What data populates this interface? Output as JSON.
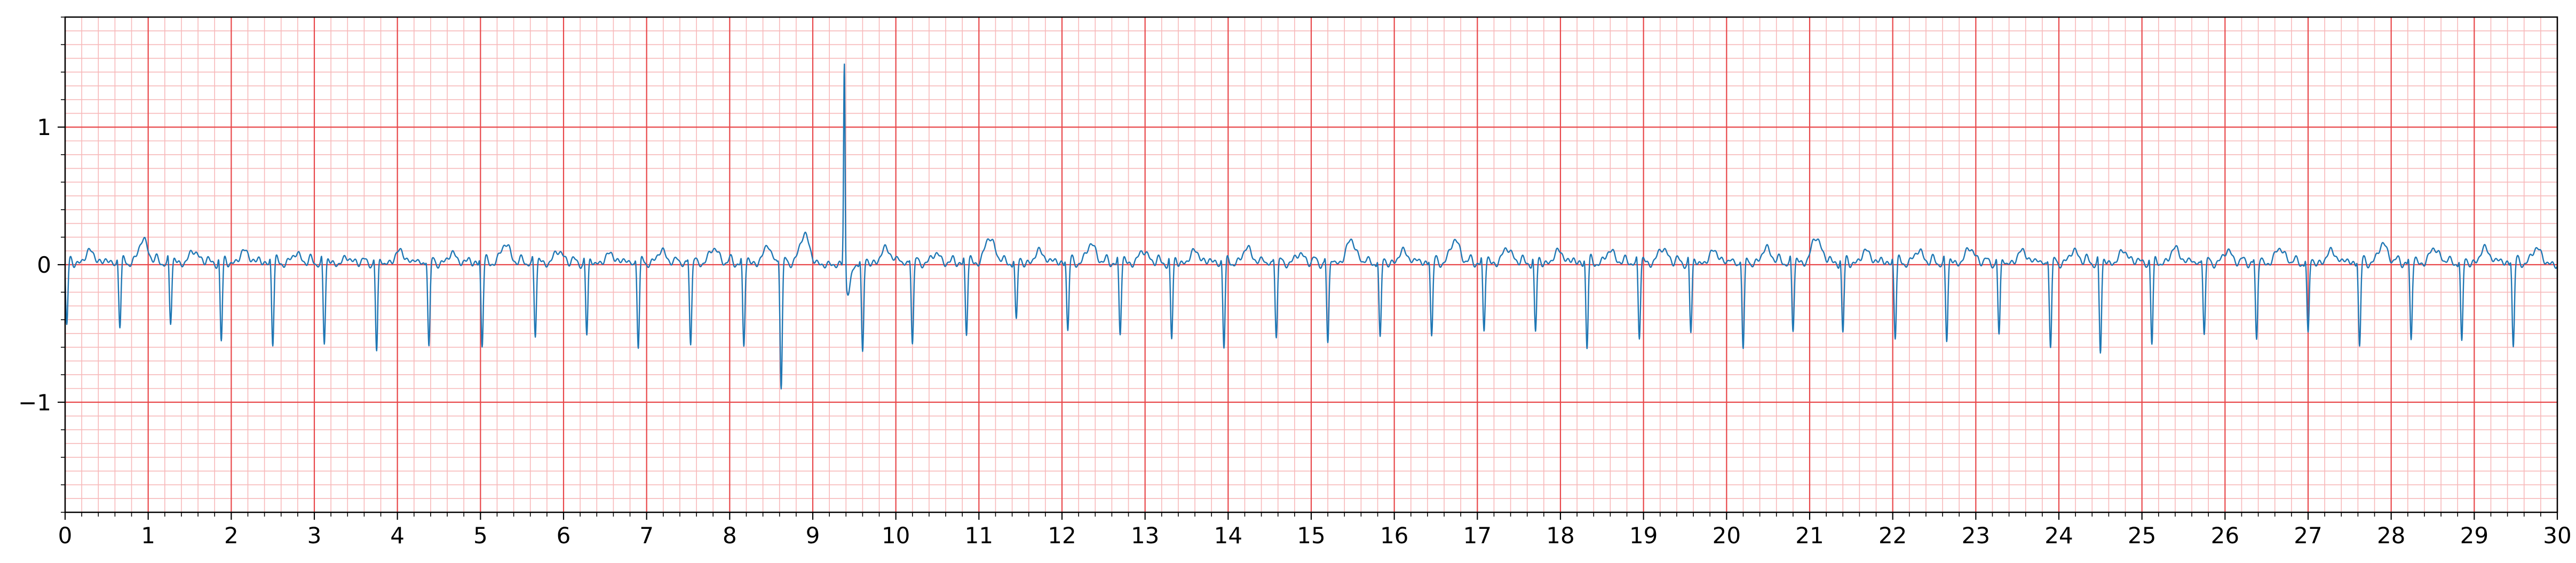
{
  "chart_data": {
    "type": "line",
    "title": "",
    "xlabel": "",
    "ylabel": "",
    "xlim": [
      0,
      30
    ],
    "ylim": [
      -1.8,
      1.8
    ],
    "x_ticks": [
      "0",
      "1",
      "2",
      "3",
      "4",
      "5",
      "6",
      "7",
      "8",
      "9",
      "10",
      "11",
      "12",
      "13",
      "14",
      "15",
      "16",
      "17",
      "18",
      "19",
      "20",
      "21",
      "22",
      "23",
      "24",
      "25",
      "26",
      "27",
      "28",
      "29",
      "30"
    ],
    "y_ticks": [
      {
        "value": -1,
        "label": "−1"
      },
      {
        "value": 0,
        "label": "0"
      },
      {
        "value": 1,
        "label": "1"
      }
    ],
    "grid": {
      "major": true,
      "minor": true,
      "major_x_step": 1,
      "minor_x_step": 0.2,
      "major_y_step": 1,
      "minor_y_step": 0.1
    },
    "colors": {
      "trace": "#1f77b4",
      "major_grid": "#e8474a",
      "minor_grid": "#f7b8b9",
      "axis": "#000000"
    },
    "series": [
      {
        "name": "",
        "beat_times": [
          0.02,
          0.66,
          1.27,
          1.88,
          2.5,
          3.12,
          3.75,
          4.38,
          5.02,
          5.66,
          6.28,
          6.9,
          7.53,
          8.17,
          8.62,
          9.38,
          9.6,
          10.2,
          10.85,
          11.45,
          12.07,
          12.7,
          13.32,
          13.95,
          14.58,
          15.2,
          15.83,
          16.45,
          17.08,
          17.7,
          18.32,
          18.95,
          19.57,
          20.2,
          20.8,
          21.4,
          22.03,
          22.65,
          23.28,
          23.9,
          24.5,
          25.12,
          25.75,
          26.38,
          27.0,
          27.62,
          28.24,
          28.85,
          29.47
        ],
        "beat_amplitudes": [
          -0.45,
          -0.45,
          -0.42,
          -0.56,
          -0.57,
          -0.57,
          -0.64,
          -0.6,
          -0.59,
          -0.51,
          -0.52,
          -0.6,
          -0.58,
          -0.6,
          -0.9,
          1.52,
          -0.66,
          -0.57,
          -0.5,
          -0.42,
          -0.48,
          -0.5,
          -0.55,
          -0.6,
          -0.52,
          -0.58,
          -0.55,
          -0.52,
          -0.48,
          -0.5,
          -0.6,
          -0.52,
          -0.5,
          -0.62,
          -0.47,
          -0.5,
          -0.52,
          -0.55,
          -0.52,
          -0.6,
          -0.64,
          -0.58,
          -0.5,
          -0.55,
          -0.52,
          -0.6,
          -0.55,
          -0.58,
          -0.6
        ],
        "t_wave_amplitudes": [
          0.1,
          0.18,
          0.1,
          0.1,
          0.08,
          0.05,
          0.1,
          0.08,
          0.15,
          0.1,
          0.08,
          0.1,
          0.12,
          0.1,
          0.22,
          0.0,
          0.12,
          0.08,
          0.2,
          0.1,
          0.15,
          0.1,
          0.1,
          0.12,
          0.08,
          0.18,
          0.1,
          0.18,
          0.12,
          0.1,
          0.1,
          0.12,
          0.1,
          0.12,
          0.2,
          0.1,
          0.1,
          0.12,
          0.1,
          0.1,
          0.1,
          0.12,
          0.1,
          0.12,
          0.1,
          0.15,
          0.12,
          0.12,
          0.12
        ]
      }
    ]
  }
}
